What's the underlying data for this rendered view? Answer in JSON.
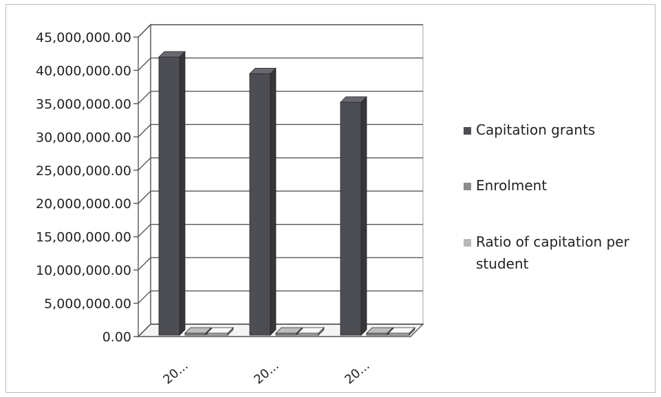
{
  "chart_data": {
    "type": "bar",
    "style": "3d-clustered-column",
    "categories": [
      "20...",
      "20...",
      "20..."
    ],
    "series": [
      {
        "name": "Capitation grants",
        "values": [
          42000000,
          39500000,
          35200000
        ],
        "color": "#4d4d54"
      },
      {
        "name": "Enrolment",
        "values": [
          0,
          0,
          0
        ],
        "color": "#8c8c8c"
      },
      {
        "name": "Ratio of capitation per student",
        "values": [
          0,
          0,
          0
        ],
        "color": "#b8b8b8"
      }
    ],
    "y_tick_labels": [
      "0.00",
      "5,000,000.00",
      "10,000,000.00",
      "15,000,000.00",
      "20,000,000.00",
      "25,000,000.00",
      "30,000,000.00",
      "35,000,000.00",
      "40,000,000.00",
      "45,000,000.00"
    ],
    "ylim": [
      0,
      45000000
    ],
    "title": "",
    "xlabel": "",
    "ylabel": "",
    "grid": true,
    "legend_position": "right"
  }
}
